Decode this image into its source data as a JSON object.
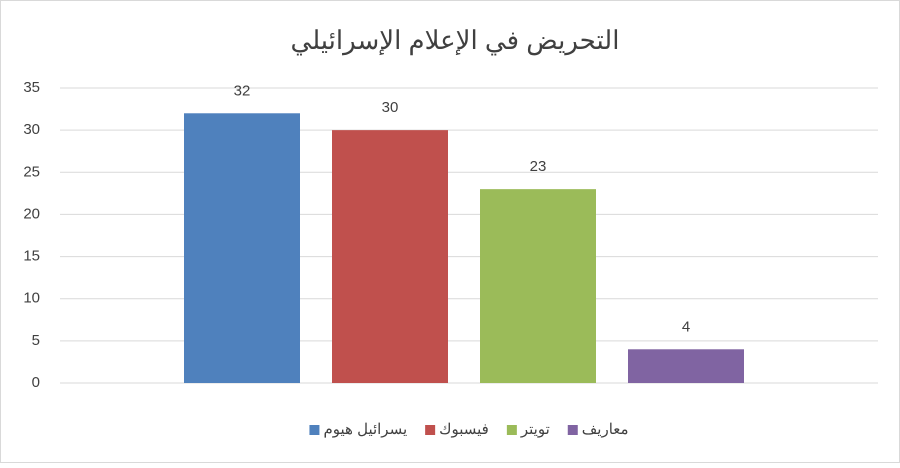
{
  "chart_data": {
    "type": "bar",
    "title": "التحريض في الإعلام الإسرائيلي",
    "categories": [
      null
    ],
    "series": [
      {
        "name": "يسرائيل هيوم",
        "color": "#4f81bd",
        "values": [
          32
        ]
      },
      {
        "name": "فيسبوك",
        "color": "#c0504d",
        "values": [
          30
        ]
      },
      {
        "name": "تويتر",
        "color": "#9bbb59",
        "values": [
          23
        ]
      },
      {
        "name": "معاريف",
        "color": "#8064a2",
        "values": [
          4
        ]
      }
    ],
    "ylim": [
      0,
      35
    ],
    "yticks": [
      0,
      5,
      10,
      15,
      20,
      25,
      30,
      35
    ],
    "grid": true,
    "legend": "bottom"
  }
}
